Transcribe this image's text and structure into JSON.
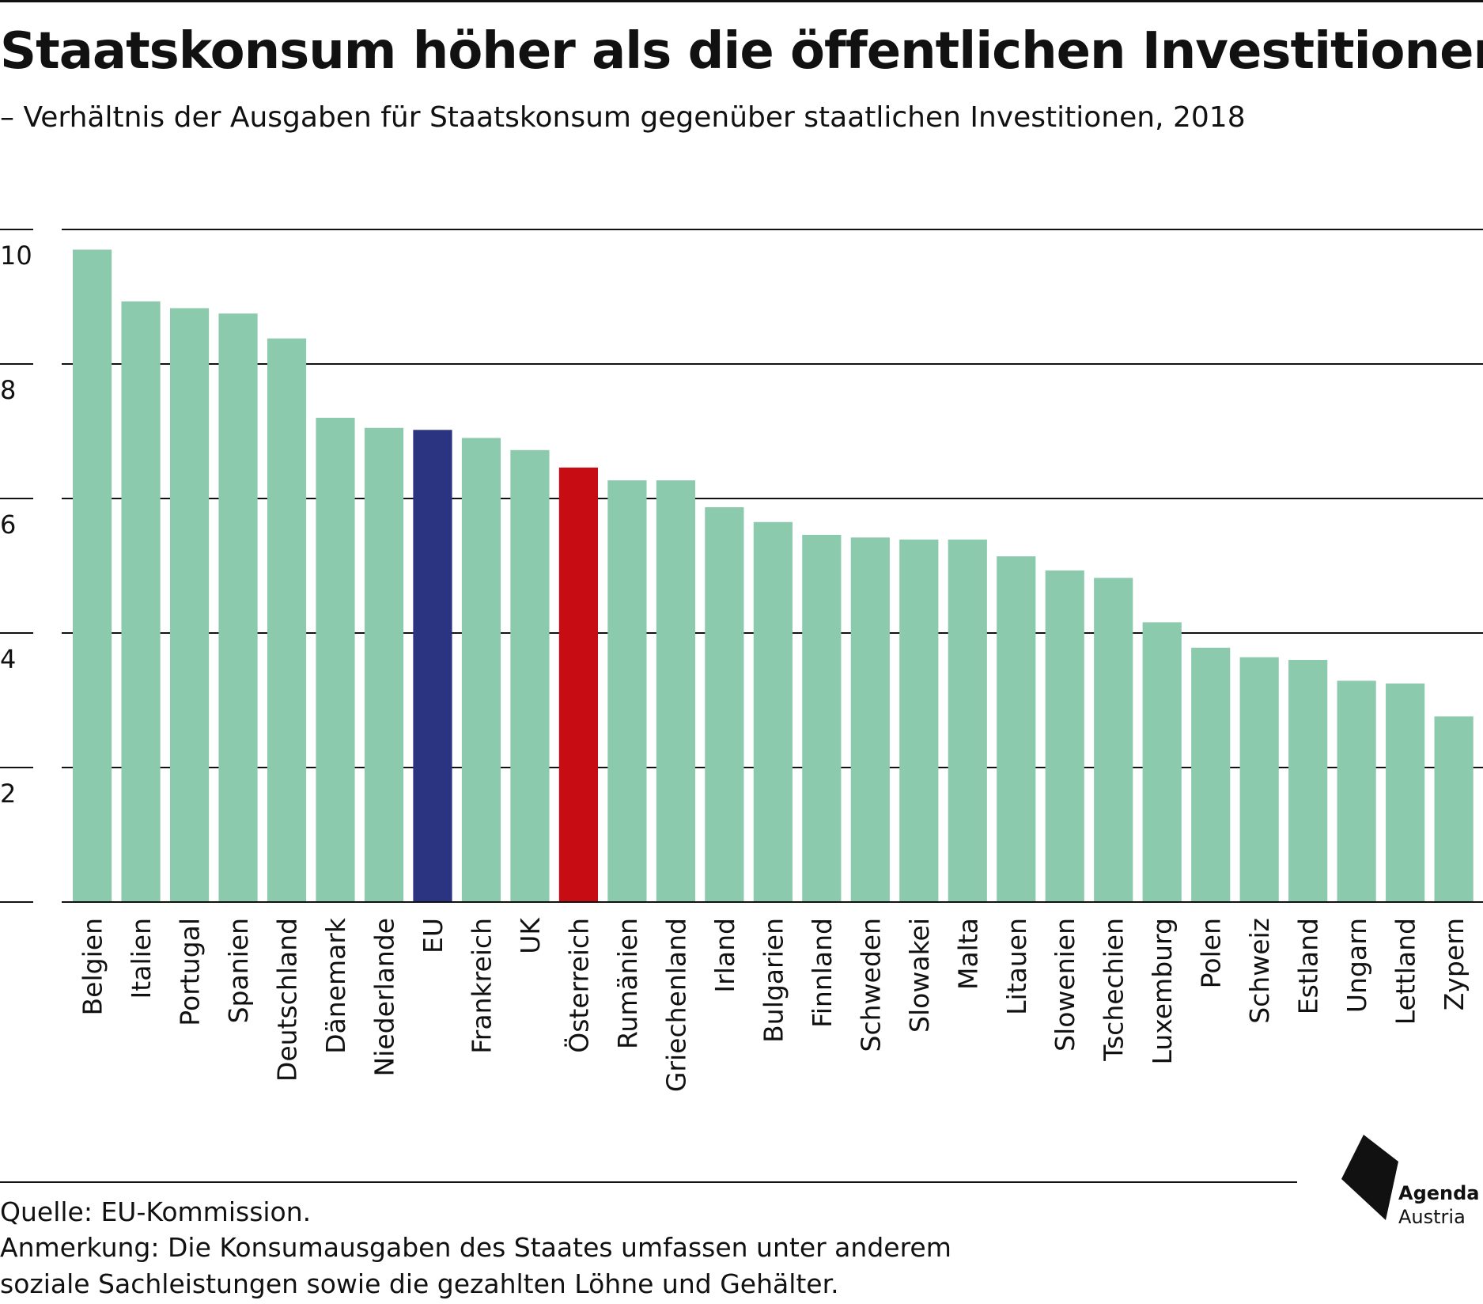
{
  "title": "Staatskonsum höher als die öffentlichen Investitionen",
  "subtitle": "– Verhältnis der Ausgaben für Staatskonsum gegenüber staatlichen Investitionen, 2018",
  "source": "Quelle: EU-Kommission.",
  "note_line1": "Anmerkung: Die Konsumausgaben des Staates umfassen unter anderem",
  "note_line2": "soziale Sachleistungen sowie die gezahlten Löhne und Gehälter.",
  "logo": {
    "line1": "Agenda",
    "line2": "Austria"
  },
  "colors": {
    "default": "#8ccaad",
    "eu": "#2a3480",
    "austria": "#c80c14"
  },
  "chart_data": {
    "type": "bar",
    "title": "Staatskonsum höher als die öffentlichen Investitionen",
    "subtitle": "– Verhältnis der Ausgaben für Staatskonsum gegenüber staatlichen Investitionen, 2018",
    "xlabel": "",
    "ylabel": "",
    "ylim": [
      0,
      10
    ],
    "yticks": [
      2,
      4,
      6,
      8,
      10
    ],
    "grid": true,
    "categories": [
      "Belgien",
      "Italien",
      "Portugal",
      "Spanien",
      "Deutschland",
      "Dänemark",
      "Niederlande",
      "EU",
      "Frankreich",
      "UK",
      "Österreich",
      "Rumänien",
      "Griechenland",
      "Irland",
      "Bulgarien",
      "Finnland",
      "Schweden",
      "Slowakei",
      "Malta",
      "Litauen",
      "Slowenien",
      "Tschechien",
      "Luxemburg",
      "Polen",
      "Schweiz",
      "Estland",
      "Ungarn",
      "Lettland",
      "Zypern"
    ],
    "values": [
      9.7,
      8.93,
      8.83,
      8.75,
      8.38,
      7.2,
      7.05,
      7.02,
      6.9,
      6.72,
      6.46,
      6.27,
      6.27,
      5.87,
      5.65,
      5.46,
      5.42,
      5.39,
      5.39,
      5.14,
      4.93,
      4.82,
      4.16,
      3.78,
      3.64,
      3.6,
      3.29,
      3.25,
      2.76
    ],
    "highlight": {
      "EU": "eu",
      "Österreich": "austria"
    }
  }
}
